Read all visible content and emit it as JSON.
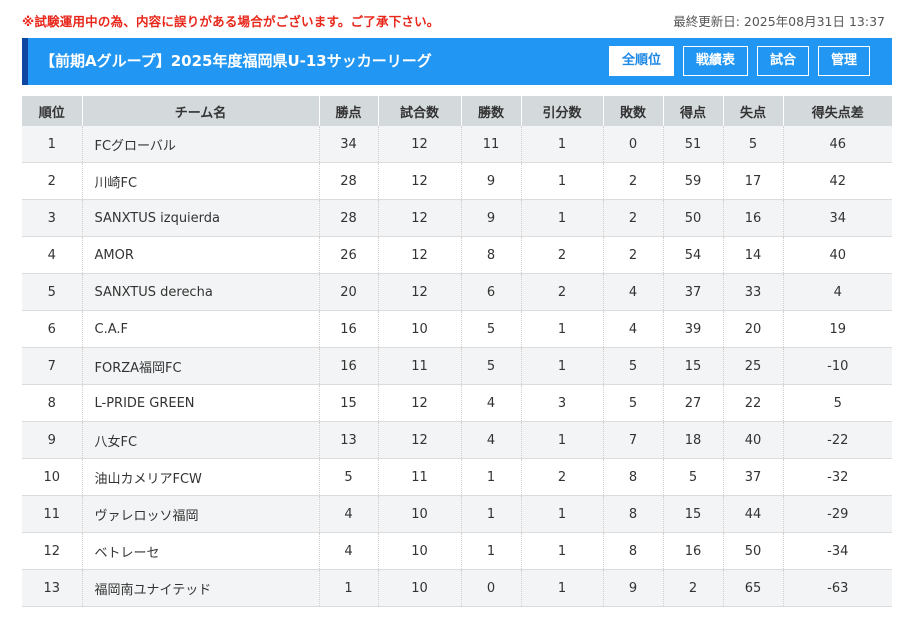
{
  "notice": "※試験運用中の為、内容に誤りがある場合がございます。ご了承下さい。",
  "updated": "最終更新日: 2025年08月31日 13:37",
  "header": {
    "title": "【前期Aグループ】2025年度福岡県U-13サッカーリーグ",
    "buttons": [
      "全順位",
      "戦績表",
      "試合",
      "管理"
    ]
  },
  "table": {
    "columns": [
      "順位",
      "チーム名",
      "勝点",
      "試合数",
      "勝数",
      "引分数",
      "敗数",
      "得点",
      "失点",
      "得失点差"
    ],
    "rows": [
      [
        "1",
        "FCグローバル",
        "34",
        "12",
        "11",
        "1",
        "0",
        "51",
        "5",
        "46"
      ],
      [
        "2",
        "川崎FC",
        "28",
        "12",
        "9",
        "1",
        "2",
        "59",
        "17",
        "42"
      ],
      [
        "3",
        "SANXTUS izquierda",
        "28",
        "12",
        "9",
        "1",
        "2",
        "50",
        "16",
        "34"
      ],
      [
        "4",
        "AMOR",
        "26",
        "12",
        "8",
        "2",
        "2",
        "54",
        "14",
        "40"
      ],
      [
        "5",
        "SANXTUS derecha",
        "20",
        "12",
        "6",
        "2",
        "4",
        "37",
        "33",
        "4"
      ],
      [
        "6",
        "C.A.F",
        "16",
        "10",
        "5",
        "1",
        "4",
        "39",
        "20",
        "19"
      ],
      [
        "7",
        "FORZA福岡FC",
        "16",
        "11",
        "5",
        "1",
        "5",
        "15",
        "25",
        "-10"
      ],
      [
        "8",
        "L-PRIDE GREEN",
        "15",
        "12",
        "4",
        "3",
        "5",
        "27",
        "22",
        "5"
      ],
      [
        "9",
        "八女FC",
        "13",
        "12",
        "4",
        "1",
        "7",
        "18",
        "40",
        "-22"
      ],
      [
        "10",
        "油山カメリアFCW",
        "5",
        "11",
        "1",
        "2",
        "8",
        "5",
        "37",
        "-32"
      ],
      [
        "11",
        "ヴァレロッソ福岡",
        "4",
        "10",
        "1",
        "1",
        "8",
        "15",
        "44",
        "-29"
      ],
      [
        "12",
        "ベトレーセ",
        "4",
        "10",
        "1",
        "1",
        "8",
        "16",
        "50",
        "-34"
      ],
      [
        "13",
        "福岡南ユナイテッド",
        "1",
        "10",
        "0",
        "1",
        "9",
        "2",
        "65",
        "-63"
      ]
    ]
  }
}
